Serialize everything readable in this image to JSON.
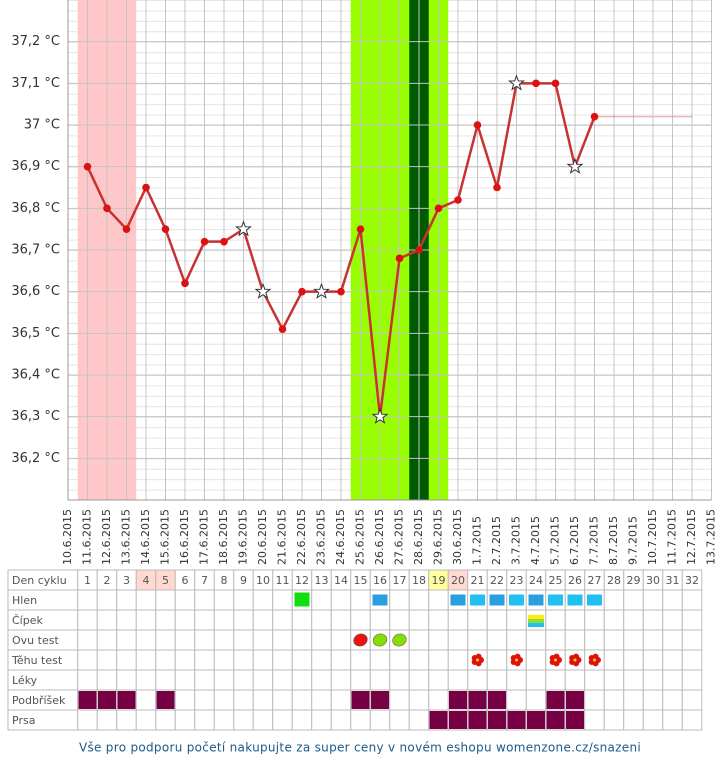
{
  "chart_data": {
    "type": "line",
    "categories": [
      "10.6.2015",
      "11.6.2015",
      "12.6.2015",
      "13.6.2015",
      "14.6.2015",
      "15.6.2015",
      "16.6.2015",
      "17.6.2015",
      "18.6.2015",
      "19.6.2015",
      "20.6.2015",
      "21.6.2015",
      "22.6.2015",
      "23.6.2015",
      "24.6.2015",
      "25.6.2015",
      "26.6.2015",
      "27.6.2015",
      "28.6.2015",
      "29.6.2015",
      "30.6.2015",
      "1.7.2015",
      "2.7.2015",
      "3.7.2015",
      "4.7.2015",
      "5.7.2015",
      "6.7.2015",
      "7.7.2015",
      "8.7.2015",
      "9.7.2015",
      "10.7.2015",
      "11.7.2015",
      "12.7.2015",
      "13.7.2015"
    ],
    "series": [
      {
        "color": "#c83232",
        "values": [
          null,
          36.9,
          36.8,
          36.75,
          36.85,
          36.75,
          36.62,
          36.72,
          36.72,
          36.75,
          36.6,
          36.51,
          36.6,
          36.6,
          36.6,
          36.75,
          36.3,
          36.68,
          36.7,
          36.8,
          36.82,
          37.0,
          36.85,
          37.1,
          37.1,
          37.1,
          36.9,
          37.02,
          null,
          null,
          null,
          null,
          null,
          null
        ]
      },
      {
        "color": "#e07070",
        "dashed": true,
        "values": [
          null,
          null,
          null,
          null,
          null,
          null,
          null,
          null,
          null,
          null,
          null,
          null,
          null,
          null,
          null,
          null,
          null,
          null,
          null,
          null,
          null,
          null,
          null,
          null,
          null,
          null,
          null,
          37.02,
          37.02,
          37.02,
          37.02,
          37.02,
          37.02,
          null
        ]
      }
    ],
    "star_points": [
      9,
      10,
      13,
      16,
      23,
      26
    ],
    "bands": [
      {
        "from": 1,
        "to": 3,
        "color": "#ffc8c8"
      },
      {
        "from": 15,
        "to": 19,
        "color": "#99ff00"
      },
      {
        "from": 18,
        "to": 18,
        "color": "#005a00"
      }
    ],
    "ylim": [
      36.1,
      37.3
    ],
    "yticks": [
      {
        "value": 36.2,
        "label": "36,2 °C"
      },
      {
        "value": 36.3,
        "label": "36,3 °C"
      },
      {
        "value": 36.4,
        "label": "36,4 °C"
      },
      {
        "value": 36.5,
        "label": "36,5 °C"
      },
      {
        "value": 36.6,
        "label": "36,6 °C"
      },
      {
        "value": 36.7,
        "label": "36,7 °C"
      },
      {
        "value": 36.8,
        "label": "36,8 °C"
      },
      {
        "value": 36.9,
        "label": "36,9 °C"
      },
      {
        "value": 37,
        "label": "37 °C"
      },
      {
        "value": 37.1,
        "label": "37,1 °C"
      },
      {
        "value": 37.2,
        "label": "37,2 °C"
      }
    ],
    "grid": true
  },
  "table": {
    "rows": [
      "Den cyklu",
      "Hlen",
      "Čípek",
      "Ovu test",
      "Těhu test",
      "Léky",
      "Podbříšek",
      "Prsa"
    ],
    "days": [
      1,
      2,
      3,
      4,
      5,
      6,
      7,
      8,
      9,
      10,
      11,
      12,
      13,
      14,
      15,
      16,
      17,
      18,
      19,
      20,
      21,
      22,
      23,
      24,
      25,
      26,
      27,
      28,
      29,
      30,
      31,
      32
    ]
  },
  "footer": "Vše pro podporu početí nakupujte za super ceny v novém eshopu womenzone.cz/snazeni"
}
